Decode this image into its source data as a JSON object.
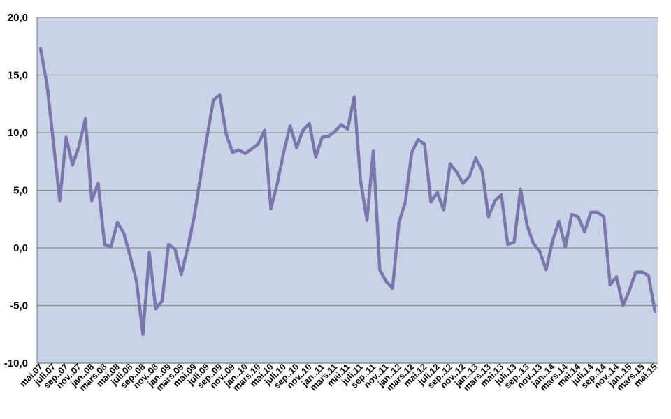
{
  "chart_data": {
    "type": "line",
    "title": "",
    "xlabel": "",
    "ylabel": "",
    "ylim": [
      -10,
      20
    ],
    "y_ticks": [
      "20,0",
      "15,0",
      "10,0",
      "5,0",
      "0,0",
      "-5,0",
      "-10,0"
    ],
    "y_tick_values": [
      20,
      15,
      10,
      5,
      0,
      -5,
      -10
    ],
    "grid": true,
    "legend": "none",
    "colors": {
      "plot_background": "#c9d3e8",
      "line": "#7b77ac",
      "grid": "#8c8c8c"
    },
    "x_tick_labels": [
      "mai.07",
      "juli.07",
      "sep..07",
      "nov..07",
      "jan..08",
      "mars.08",
      "mai.08",
      "juli.08",
      "sep..08",
      "nov..08",
      "jan..09",
      "mars.09",
      "mai.09",
      "juli.09",
      "sep..09",
      "nov..09",
      "jan..10",
      "mars.10",
      "mai.10",
      "juli.10",
      "sep..10",
      "nov..10",
      "jan..11",
      "mars.11",
      "mai.11",
      "juli.11",
      "sep..11",
      "nov..11",
      "jan..12",
      "mars.12",
      "mai.12",
      "juli.12",
      "sep..12",
      "nov..12",
      "jan..13",
      "mars.13",
      "mai.13",
      "juli.13",
      "sep..13",
      "nov..13",
      "jan..14",
      "mars.14",
      "mai.14",
      "juli.14",
      "sep..14",
      "nov..14",
      "jan..15",
      "mars.15",
      "mai.15"
    ],
    "series": [
      {
        "values": [
          17.3,
          14.2,
          9.2,
          4.1,
          9.6,
          7.2,
          8.8,
          11.2,
          4.1,
          5.6,
          0.3,
          0.1,
          2.2,
          1.3,
          -0.7,
          -2.9,
          -7.5,
          -0.4,
          -5.3,
          -4.6,
          0.3,
          -0.1,
          -2.3,
          0.0,
          2.7,
          6.2,
          9.6,
          12.8,
          13.3,
          9.9,
          8.3,
          8.5,
          8.2,
          8.6,
          9.0,
          10.2,
          3.4,
          5.6,
          8.3,
          10.6,
          8.7,
          10.2,
          10.8,
          7.9,
          9.6,
          9.7,
          10.1,
          10.7,
          10.3,
          13.1,
          5.8,
          2.4,
          8.4,
          -1.9,
          -2.9,
          -3.5,
          2.2,
          4.0,
          8.3,
          9.4,
          9.0,
          4.0,
          4.8,
          3.3,
          7.3,
          6.6,
          5.6,
          6.2,
          7.8,
          6.7,
          2.7,
          4.1,
          4.6,
          0.3,
          0.5,
          5.1,
          2.0,
          0.4,
          -0.3,
          -1.9,
          0.6,
          2.3,
          0.1,
          2.9,
          2.7,
          1.4,
          3.1,
          3.1,
          2.7,
          -3.2,
          -2.5,
          -5.0,
          -3.7,
          -2.1,
          -2.1,
          -2.4,
          -5.5
        ]
      }
    ]
  }
}
